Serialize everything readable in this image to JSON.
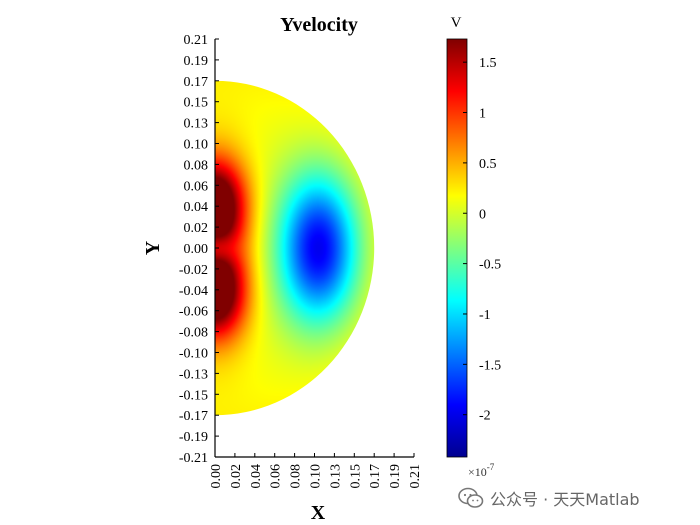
{
  "chart_data": {
    "type": "heatmap",
    "title": "Yvelocity",
    "xlabel": "X",
    "ylabel": "Y",
    "colorbar_label": "V",
    "colorbar_exponent": "×10",
    "colorbar_exponent_power": "-7",
    "x_range": [
      0,
      0.21
    ],
    "y_range": [
      -0.21,
      0.21
    ],
    "domain_radius": 0.168,
    "value_range": [
      -2.42e-07,
      1.73e-07
    ],
    "xticks": [
      "0.00",
      "0.02",
      "0.04",
      "0.06",
      "0.08",
      "0.10",
      "0.13",
      "0.15",
      "0.17",
      "0.19",
      "0.21"
    ],
    "xtick_values": [
      0.0,
      0.021,
      0.042,
      0.063,
      0.084,
      0.105,
      0.126,
      0.147,
      0.168,
      0.189,
      0.21
    ],
    "yticks": [
      "0.21",
      "0.19",
      "0.17",
      "0.15",
      "0.13",
      "0.10",
      "0.08",
      "0.06",
      "0.04",
      "0.02",
      "0.00",
      "-0.02",
      "-0.04",
      "-0.06",
      "-0.08",
      "-0.10",
      "-0.13",
      "-0.15",
      "-0.17",
      "-0.19",
      "-0.21"
    ],
    "ytick_values": [
      0.21,
      0.189,
      0.168,
      0.147,
      0.126,
      0.105,
      0.084,
      0.063,
      0.042,
      0.021,
      0.0,
      -0.021,
      -0.042,
      -0.063,
      -0.084,
      -0.105,
      -0.126,
      -0.147,
      -0.168,
      -0.189,
      -0.21
    ],
    "colorbar_ticks": [
      "1.5",
      "1",
      "0.5",
      "0",
      "-0.5",
      "-1",
      "-1.5",
      "-2"
    ],
    "colorbar_tick_values": [
      1.5,
      1.0,
      0.5,
      0.0,
      -0.5,
      -1.0,
      -1.5,
      -2.0
    ],
    "colorbar_min": -2.42,
    "colorbar_max": 1.73,
    "colormap": "jet",
    "features": [
      {
        "kind": "positive_lobe",
        "x": 0.0,
        "y": 0.045,
        "value": 1.73e-07
      },
      {
        "kind": "positive_lobe",
        "x": 0.0,
        "y": -0.045,
        "value": 1.73e-07
      },
      {
        "kind": "negative_core",
        "x": 0.115,
        "y": 0.0,
        "value": -2.42e-07
      }
    ]
  },
  "watermark": "公众号 · 天天Matlab"
}
